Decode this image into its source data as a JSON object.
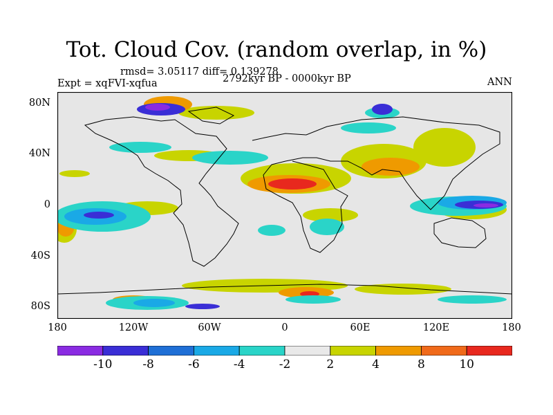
{
  "title": "Tot. Cloud Cov. (random overlap, in %)",
  "stats": "rmsd= 3.05117 diff= 0.139278",
  "experiment": "Expt = xqFVI-xqfua",
  "period": "2792kyr BP - 0000kyr BP",
  "season": "ANN",
  "y_axis": {
    "ticks": [
      "80N",
      "40N",
      "0",
      "40S",
      "80S"
    ],
    "values": [
      80,
      40,
      0,
      -40,
      -80
    ],
    "range": [
      -90,
      90
    ]
  },
  "x_axis": {
    "ticks": [
      "180",
      "120W",
      "60W",
      "0",
      "60E",
      "120E",
      "180"
    ],
    "values": [
      -180,
      -120,
      -60,
      0,
      60,
      120,
      180
    ],
    "range": [
      -180,
      180
    ]
  },
  "colorbar": {
    "labels": [
      "-10",
      "-8",
      "-6",
      "-4",
      "-2",
      "2",
      "4",
      "8",
      "10"
    ],
    "colors": [
      "#8a2be2",
      "#3a2ed6",
      "#1f6fd6",
      "#1aa9e6",
      "#2ad4c8",
      "#e9e9e9",
      "#c8d400",
      "#ef9a00",
      "#f06a1a",
      "#e8281e"
    ]
  },
  "colors": {
    "land_outline": "#000000",
    "background": "#e6e6e6",
    "frame": "#000000"
  }
}
